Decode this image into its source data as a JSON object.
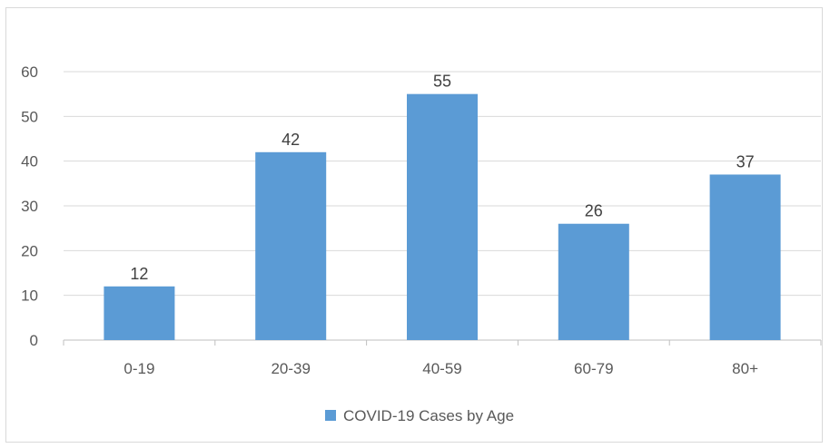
{
  "chart_data": {
    "type": "bar",
    "categories": [
      "0-19",
      "20-39",
      "40-59",
      "60-79",
      "80+"
    ],
    "series": [
      {
        "name": "COVID-19 Cases by Age",
        "values": [
          12,
          42,
          55,
          26,
          37
        ]
      }
    ],
    "data_labels": [
      "12",
      "42",
      "55",
      "26",
      "37"
    ],
    "y_ticks": [
      "0",
      "10",
      "20",
      "30",
      "40",
      "50",
      "60"
    ],
    "ylim": [
      0,
      60
    ],
    "grid": true,
    "legend_position": "bottom",
    "colors": {
      "bar": "#5b9bd5",
      "grid": "#d9d9d9",
      "axis": "#bfbfbf",
      "text": "#595959"
    }
  }
}
